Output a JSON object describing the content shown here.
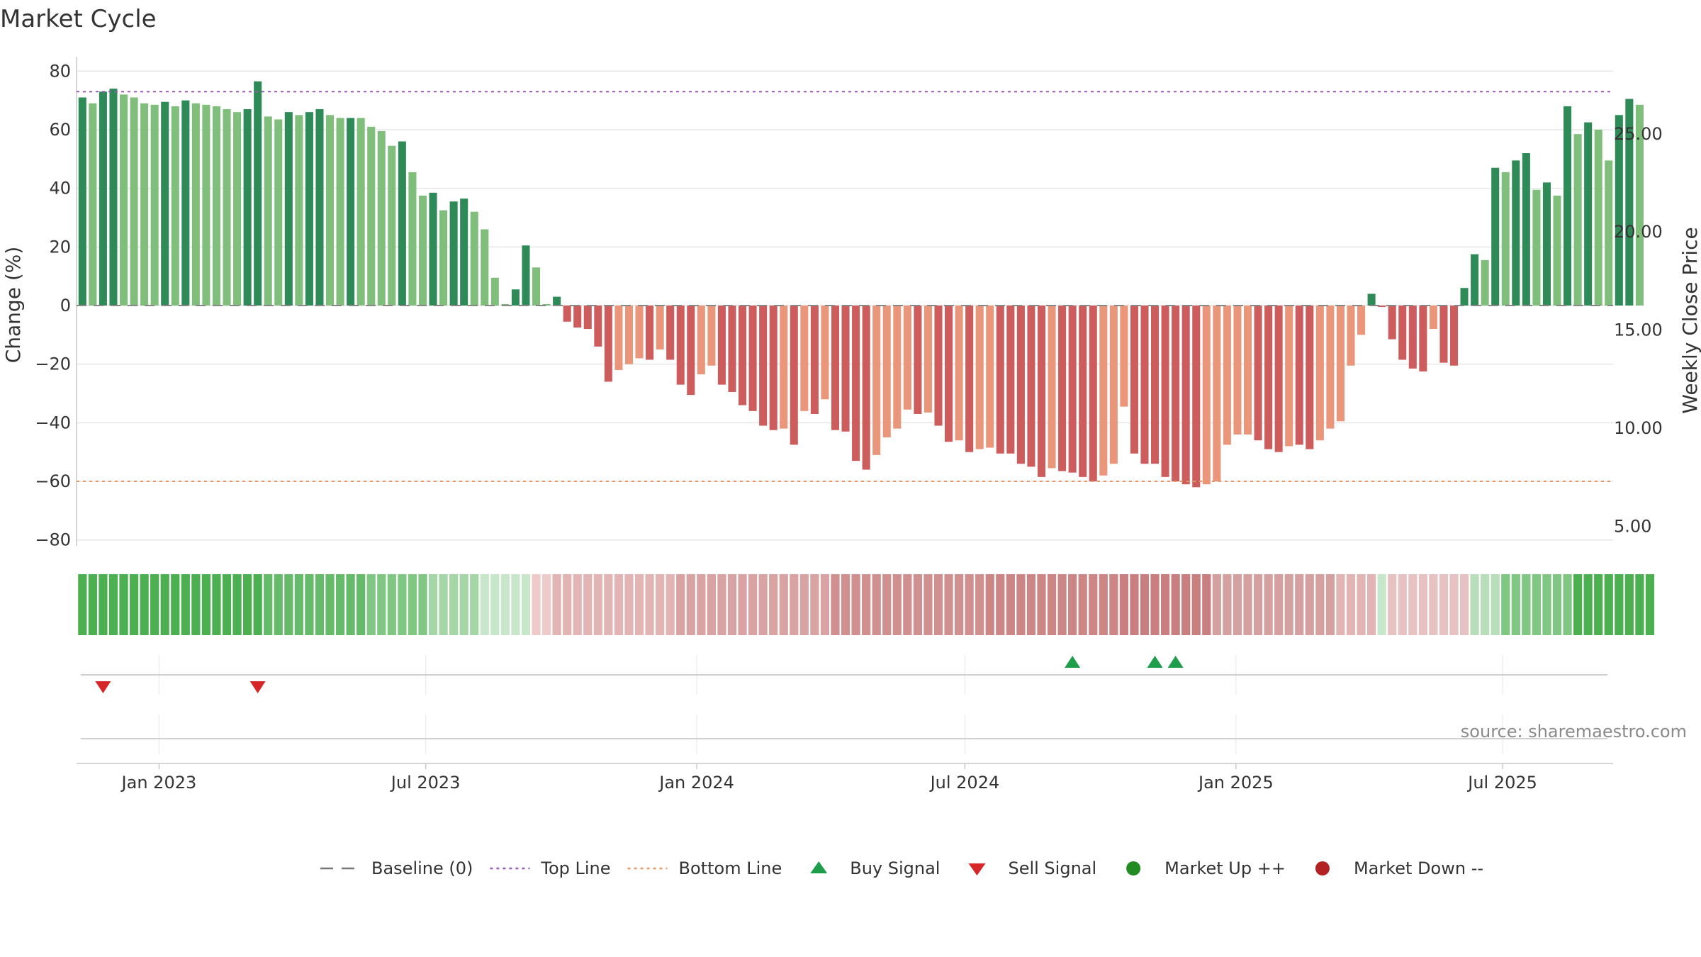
{
  "chart_data": {
    "type": "bar",
    "title": "Market Cycle",
    "ylabel": "Change (%)",
    "y2label": "Weekly Close Price",
    "ylim": [
      -82,
      82
    ],
    "y2lim": [
      4.0,
      28.5
    ],
    "yticks": [
      80,
      60,
      40,
      20,
      0,
      -20,
      -40,
      -60,
      -80
    ],
    "ytick_labels": [
      "80",
      "60",
      "40",
      "20",
      "0",
      "−20",
      "−40",
      "−60",
      "−80"
    ],
    "y2ticks": [
      25,
      20,
      15,
      10,
      5
    ],
    "y2tick_labels": [
      "25.00",
      "20.00",
      "15.00",
      "10.00",
      "5.00"
    ],
    "xlim": [
      "2022-11-06",
      "2025-09-14"
    ],
    "xticks": [
      "2023-01-01",
      "2023-07-01",
      "2024-01-01",
      "2024-07-01",
      "2025-01-01",
      "2025-07-01"
    ],
    "xtick_labels": [
      "Jan 2023",
      "Jul 2023",
      "Jan 2024",
      "Jul 2024",
      "Jan 2025",
      "Jul 2025"
    ],
    "first_week": "2022-11-10",
    "week_interval_days": 7,
    "values": [
      71,
      69,
      73,
      74,
      72,
      71,
      69,
      68.5,
      69.5,
      68,
      70,
      69,
      68.5,
      68,
      67,
      66,
      67,
      76.5,
      64.5,
      63.5,
      66,
      65,
      66,
      67,
      65,
      64,
      64,
      64,
      61,
      59.5,
      54.5,
      56,
      45.5,
      37.5,
      38.5,
      32.5,
      35.5,
      36.5,
      32,
      26,
      9.5,
      0.5,
      5.5,
      20.5,
      13,
      0.5,
      3,
      -5.5,
      -7.5,
      -8,
      -14,
      -26,
      -22,
      -20,
      -18,
      -18.5,
      -15,
      -18.5,
      -27,
      -30.5,
      -23.5,
      -20.5,
      -27,
      -29.5,
      -34,
      -36,
      -41,
      -42.5,
      -42,
      -47.5,
      -36,
      -37,
      -32,
      -42.5,
      -43,
      -53,
      -56,
      -51,
      -45,
      -42,
      -35.5,
      -37,
      -36.5,
      -41,
      -46.5,
      -46,
      -50,
      -49,
      -48.5,
      -50.5,
      -50.5,
      -54,
      -55,
      -58.5,
      -55.5,
      -56.5,
      -57,
      -58.5,
      -60,
      -58,
      -54,
      -34.5,
      -50.5,
      -54,
      -54,
      -58.5,
      -60,
      -61,
      -62,
      -61,
      -60,
      -47.5,
      -44,
      -44,
      -46,
      -49,
      -50,
      -48,
      -47.5,
      -49,
      -46,
      -42,
      -39.5,
      -20.5,
      -10,
      4,
      -0.5,
      -11.5,
      -18.5,
      -21.5,
      -22.5,
      -8,
      -19.5,
      -20.5,
      6,
      17.5,
      15.5,
      47,
      45.5,
      49.5,
      52,
      39.5,
      42,
      37.5,
      68,
      58.5,
      62.5,
      60,
      49.5,
      65,
      70.5,
      68.5
    ],
    "bar_colors": [
      "#2e8b57",
      "#7fbf7b",
      "#2e8b57",
      "#2e8b57",
      "#7fbf7b",
      "#7fbf7b",
      "#7fbf7b",
      "#7fbf7b",
      "#2e8b57",
      "#7fbf7b",
      "#2e8b57",
      "#7fbf7b",
      "#7fbf7b",
      "#7fbf7b",
      "#7fbf7b",
      "#7fbf7b",
      "#2e8b57",
      "#2e8b57",
      "#7fbf7b",
      "#7fbf7b",
      "#2e8b57",
      "#7fbf7b",
      "#2e8b57",
      "#2e8b57",
      "#7fbf7b",
      "#7fbf7b",
      "#2e8b57",
      "#7fbf7b",
      "#7fbf7b",
      "#7fbf7b",
      "#7fbf7b",
      "#2e8b57",
      "#7fbf7b",
      "#7fbf7b",
      "#2e8b57",
      "#7fbf7b",
      "#2e8b57",
      "#2e8b57",
      "#7fbf7b",
      "#7fbf7b",
      "#7fbf7b",
      "#7fbf7b",
      "#2e8b57",
      "#2e8b57",
      "#7fbf7b",
      "#7fbf7b",
      "#2e8b57",
      "#cd5c5c",
      "#cd5c5c",
      "#cd5c5c",
      "#cd5c5c",
      "#cd5c5c",
      "#e9967a",
      "#e9967a",
      "#e9967a",
      "#cd5c5c",
      "#e9967a",
      "#cd5c5c",
      "#cd5c5c",
      "#cd5c5c",
      "#e9967a",
      "#e9967a",
      "#cd5c5c",
      "#cd5c5c",
      "#cd5c5c",
      "#cd5c5c",
      "#cd5c5c",
      "#cd5c5c",
      "#e9967a",
      "#cd5c5c",
      "#e9967a",
      "#cd5c5c",
      "#e9967a",
      "#cd5c5c",
      "#cd5c5c",
      "#cd5c5c",
      "#cd5c5c",
      "#e9967a",
      "#e9967a",
      "#e9967a",
      "#e9967a",
      "#cd5c5c",
      "#e9967a",
      "#cd5c5c",
      "#cd5c5c",
      "#e9967a",
      "#cd5c5c",
      "#e9967a",
      "#e9967a",
      "#cd5c5c",
      "#cd5c5c",
      "#cd5c5c",
      "#cd5c5c",
      "#cd5c5c",
      "#e9967a",
      "#cd5c5c",
      "#cd5c5c",
      "#cd5c5c",
      "#cd5c5c",
      "#e9967a",
      "#e9967a",
      "#e9967a",
      "#cd5c5c",
      "#cd5c5c",
      "#cd5c5c",
      "#cd5c5c",
      "#cd5c5c",
      "#cd5c5c",
      "#cd5c5c",
      "#e9967a",
      "#e9967a",
      "#e9967a",
      "#e9967a",
      "#e9967a",
      "#cd5c5c",
      "#cd5c5c",
      "#cd5c5c",
      "#e9967a",
      "#cd5c5c",
      "#cd5c5c",
      "#e9967a",
      "#e9967a",
      "#e9967a",
      "#e9967a",
      "#e9967a",
      "#2e8b57",
      "#cd5c5c",
      "#cd5c5c",
      "#cd5c5c",
      "#cd5c5c",
      "#cd5c5c",
      "#e9967a",
      "#cd5c5c",
      "#cd5c5c",
      "#2e8b57",
      "#2e8b57",
      "#7fbf7b",
      "#2e8b57",
      "#7fbf7b",
      "#2e8b57",
      "#2e8b57",
      "#7fbf7b",
      "#2e8b57",
      "#7fbf7b",
      "#2e8b57",
      "#7fbf7b",
      "#2e8b57",
      "#7fbf7b",
      "#7fbf7b",
      "#2e8b57",
      "#2e8b57",
      "#7fbf7b"
    ],
    "heat_strip": [
      {
        "color": "#4caf50",
        "count": 18
      },
      {
        "color": "#66bb6a",
        "count": 10
      },
      {
        "color": "#81c784",
        "count": 6
      },
      {
        "color": "#a5d6a7",
        "count": 5
      },
      {
        "color": "#c8e6c9",
        "count": 5
      },
      {
        "color": "#efcaca",
        "count": 2
      },
      {
        "color": "#e3b4b4",
        "count": 12
      },
      {
        "color": "#d9a3a3",
        "count": 15
      },
      {
        "color": "#d09090",
        "count": 15
      },
      {
        "color": "#cc8686",
        "count": 13
      },
      {
        "color": "#c97f7f",
        "count": 9
      },
      {
        "color": "#d5a0a0",
        "count": 12
      },
      {
        "color": "#e3b4b4",
        "count": 4
      },
      {
        "color": "#c8e6c9",
        "count": 1
      },
      {
        "color": "#e6c2c2",
        "count": 8
      },
      {
        "color": "#b9dfba",
        "count": 3
      },
      {
        "color": "#81c784",
        "count": 7
      },
      {
        "color": "#4caf50",
        "count": 8
      }
    ],
    "baseline": 0,
    "top_line": 73,
    "bottom_line": -60,
    "buy_signals": [
      "2024-09-12",
      "2024-11-07",
      "2024-11-21"
    ],
    "sell_signals": [
      "2022-11-24",
      "2023-03-09"
    ],
    "legend_position": "bottom-center",
    "grid": true,
    "legend": [
      {
        "label": "Baseline (0)",
        "kind": "dash",
        "color": "#777777"
      },
      {
        "label": "Top Line",
        "kind": "dotted",
        "color": "#9b59b6"
      },
      {
        "label": "Bottom Line",
        "kind": "dotted",
        "color": "#e59866"
      },
      {
        "label": "Buy Signal",
        "kind": "triangle-up",
        "color": "#1e9e4a"
      },
      {
        "label": "Sell Signal",
        "kind": "triangle-down",
        "color": "#d62728"
      },
      {
        "label": "Market Up ++",
        "kind": "circle",
        "color": "#228b22"
      },
      {
        "label": "Market Down --",
        "kind": "circle",
        "color": "#b22222"
      }
    ],
    "source": "source: sharemaestro.com"
  },
  "colors": {
    "grid": "#e6e6e6",
    "axis": "#c8c8c8",
    "zero": "#888888"
  }
}
